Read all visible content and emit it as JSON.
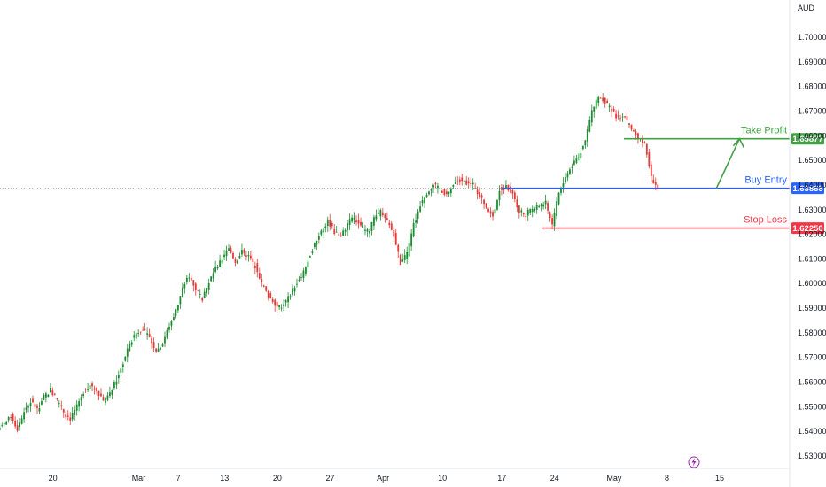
{
  "chart_data": {
    "type": "candlestick",
    "currency": "AUD",
    "ylim": [
      1.525,
      1.7125
    ],
    "y_ticks": [
      "1.53000",
      "1.54000",
      "1.55000",
      "1.56000",
      "1.57000",
      "1.58000",
      "1.59000",
      "1.60000",
      "1.61000",
      "1.62000",
      "1.63000",
      "1.64000",
      "1.65000",
      "1.66000",
      "1.67000",
      "1.68000",
      "1.69000",
      "1.70000"
    ],
    "x_ticks": [
      {
        "label": "20",
        "index": 8
      },
      {
        "label": "Mar",
        "index": 21
      },
      {
        "label": "7",
        "index": 27
      },
      {
        "label": "13",
        "index": 34
      },
      {
        "label": "20",
        "index": 42
      },
      {
        "label": "27",
        "index": 50
      },
      {
        "label": "Apr",
        "index": 58
      },
      {
        "label": "10",
        "index": 67
      },
      {
        "label": "17",
        "index": 76
      },
      {
        "label": "24",
        "index": 84
      },
      {
        "label": "May",
        "index": 93
      },
      {
        "label": "8",
        "index": 101
      },
      {
        "label": "15",
        "index": 109
      }
    ],
    "x_count": 119,
    "close": [
      1.543,
      1.546,
      1.541,
      1.548,
      1.552,
      1.549,
      1.554,
      1.557,
      1.553,
      1.548,
      1.545,
      1.55,
      1.556,
      1.559,
      1.557,
      1.553,
      1.555,
      1.561,
      1.568,
      1.575,
      1.58,
      1.582,
      1.578,
      1.573,
      1.576,
      1.583,
      1.589,
      1.598,
      1.603,
      1.598,
      1.594,
      1.6,
      1.606,
      1.61,
      1.614,
      1.609,
      1.613,
      1.611,
      1.607,
      1.6,
      1.595,
      1.592,
      1.59,
      1.594,
      1.599,
      1.603,
      1.609,
      1.616,
      1.622,
      1.625,
      1.621,
      1.619,
      1.624,
      1.627,
      1.623,
      1.621,
      1.626,
      1.629,
      1.625,
      1.62,
      1.608,
      1.612,
      1.624,
      1.632,
      1.637,
      1.64,
      1.638,
      1.636,
      1.64,
      1.642,
      1.641,
      1.64,
      1.636,
      1.631,
      1.628,
      1.638,
      1.639,
      1.637,
      1.629,
      1.628,
      1.63,
      1.632,
      1.633,
      1.624,
      1.637,
      1.643,
      1.648,
      1.652,
      1.658,
      1.67,
      1.676,
      1.674,
      1.67,
      1.667,
      1.668,
      1.662,
      1.659,
      1.657,
      1.643,
      1.6385
    ],
    "series": [],
    "annotations": [
      {
        "label": "Take Profit",
        "price": 1.65877,
        "price_label": "1.65877",
        "color": "#43a047",
        "from_index": 94.5
      },
      {
        "label": "Buy Entry",
        "price": 1.63868,
        "price_label": "1.63868",
        "color": "#2962ff",
        "from_index": 76
      },
      {
        "label": "Stop Loss",
        "price": 1.6225,
        "price_label": "1.62250",
        "color": "#f23645",
        "from_index": 82
      }
    ],
    "current_price": 1.63868,
    "colors": {
      "up": "#26a69a",
      "down": "#ef5350",
      "up_dark": "#1b8c30",
      "down_dark": "#e53935",
      "axis_text": "#131722",
      "grid": "#e6e8ec"
    }
  }
}
